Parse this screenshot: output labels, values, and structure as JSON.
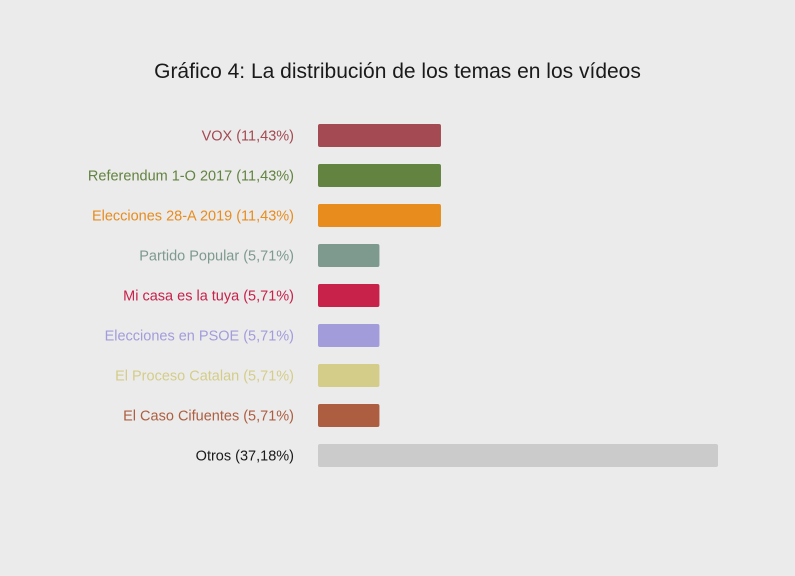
{
  "chart_data": {
    "type": "bar",
    "orientation": "horizontal",
    "title": "Gráfico 4: La distribución de los temas en los vídeos",
    "xlabel": "",
    "ylabel": "",
    "xlim": [
      0,
      37.18
    ],
    "grid": false,
    "categories": [
      "VOX (11,43%)",
      "Referendum 1-O 2017 (11,43%)",
      "Elecciones 28-A 2019 (11,43%)",
      "Partido Popular (5,71%)",
      "Mi casa es la tuya (5,71%)",
      "Elecciones en PSOE (5,71%)",
      "El Proceso Catalan (5,71%)",
      "El Caso Cifuentes (5,71%)",
      "Otros (37,18%)"
    ],
    "values": [
      11.43,
      11.43,
      11.43,
      5.71,
      5.71,
      5.71,
      5.71,
      5.71,
      37.18
    ],
    "colors": [
      "#a34a52",
      "#638340",
      "#e88c1e",
      "#7e9a8f",
      "#c8214a",
      "#a29cdb",
      "#d4cd8a",
      "#ad5e40",
      "#cbcbcb"
    ],
    "label_colors": [
      "#a34a52",
      "#638340",
      "#e88c1e",
      "#7e9a8f",
      "#c8214a",
      "#a29cdb",
      "#d4cd8a",
      "#ad5e40",
      "#1a1a1a"
    ]
  }
}
